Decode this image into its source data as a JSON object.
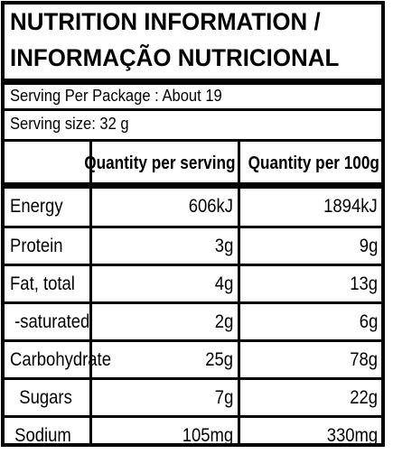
{
  "title": {
    "line1": "NUTRITION INFORMATION /",
    "line2": "INFORMAÇÃO NUTRICIONAL"
  },
  "serving": {
    "per_package": "Serving Per Package : About 19",
    "size": "Serving size: 32 g"
  },
  "table": {
    "headers": {
      "per_serving": "Quantity per serving",
      "per_100g": "Quantity per 100g"
    },
    "rows": [
      {
        "name": "Energy",
        "per_serving": "606kJ",
        "per_100g": "1894kJ"
      },
      {
        "name": "Protein",
        "per_serving": "3g",
        "per_100g": "9g"
      },
      {
        "name": "Fat, total",
        "per_serving": "4g",
        "per_100g": "13g"
      },
      {
        "name": " -saturated",
        "per_serving": "2g",
        "per_100g": "6g"
      },
      {
        "name": "Carbohydrate",
        "per_serving": "25g",
        "per_100g": "78g"
      },
      {
        "name": "  Sugars",
        "per_serving": "7g",
        "per_100g": "22g"
      },
      {
        "name": " Sodium",
        "per_serving": "105mg",
        "per_100g": "330mg"
      }
    ]
  }
}
